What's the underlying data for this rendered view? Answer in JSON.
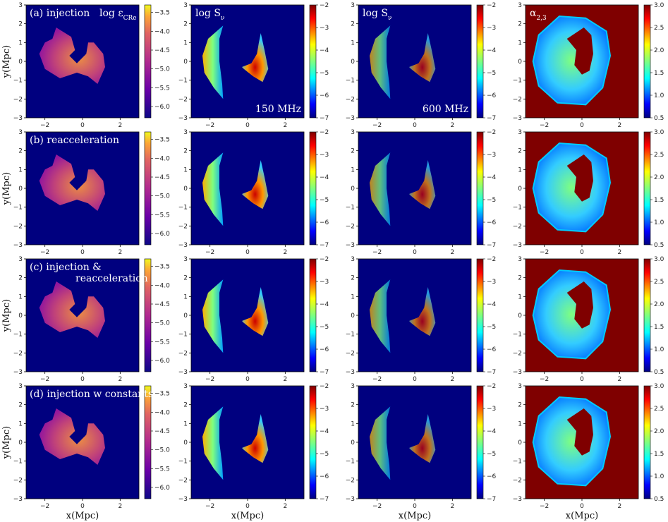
{
  "chart_data": {
    "type": "heatmap",
    "columns": [
      {
        "key": "eps",
        "title": "log ε",
        "title_sub": "CRe",
        "cmap": "plasma",
        "cb_ticks": [
          -3.5,
          -4.0,
          -4.5,
          -5.0,
          -5.5,
          -6.0
        ],
        "cb_range": [
          -6.3,
          -3.3
        ]
      },
      {
        "key": "s150",
        "title": "log S",
        "title_sub": "ν",
        "freq": "150 MHz",
        "cmap": "jet",
        "cb_ticks": [
          -2,
          -3,
          -4,
          -5,
          -6,
          -7
        ],
        "cb_range": [
          -7,
          -2
        ]
      },
      {
        "key": "s600",
        "title": "log S",
        "title_sub": "ν",
        "freq": "600 MHz",
        "cmap": "jet",
        "cb_ticks": [
          -2,
          -3,
          -4,
          -5,
          -6,
          -7
        ],
        "cb_range": [
          -7,
          -2
        ]
      },
      {
        "key": "alpha",
        "title": "α",
        "title_sub": "2,3",
        "cmap": "jet",
        "cb_ticks": [
          3.0,
          2.5,
          2.0,
          1.5,
          1.0,
          0.5
        ],
        "cb_range": [
          0.5,
          3.0
        ]
      }
    ],
    "rows": [
      {
        "label": "(a) injection"
      },
      {
        "label": "(b) reacceleration"
      },
      {
        "label": "(c) injection &",
        "label2": "reacceleration"
      },
      {
        "label": "(d) injection w constants"
      }
    ],
    "xlabel": "x(Mpc)",
    "ylabel": "y(Mpc)",
    "xticks": [
      -2,
      0,
      2
    ],
    "yticks": [
      3,
      2,
      1,
      0,
      -1,
      -2,
      -3
    ],
    "xlim": [
      -3,
      3
    ],
    "ylim": [
      -3,
      3
    ]
  },
  "colors": {
    "background_map": "#00007f",
    "alpha_background": "#7f0000"
  }
}
